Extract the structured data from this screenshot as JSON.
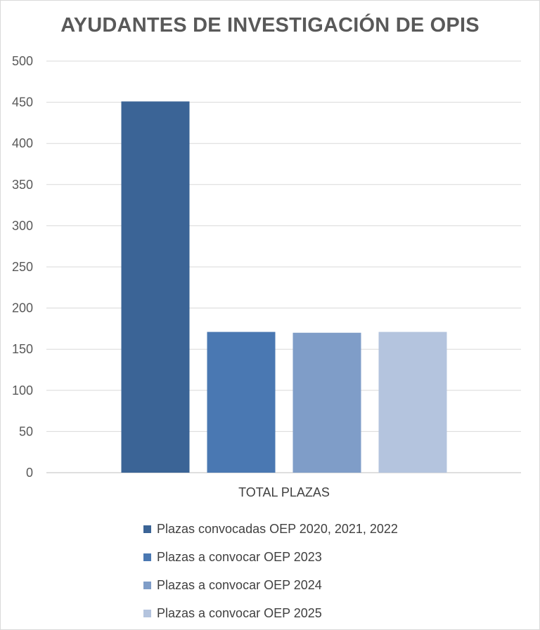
{
  "chart_data": {
    "type": "bar",
    "title": "AYUDANTES DE INVESTIGACIÓN DE OPIS",
    "categories": [
      "TOTAL PLAZAS"
    ],
    "series": [
      {
        "name": "Plazas convocadas OEP 2020, 2021, 2022",
        "values": [
          451
        ],
        "color": "#3b6496"
      },
      {
        "name": "Plazas a convocar OEP 2023",
        "values": [
          171
        ],
        "color": "#4a78b2"
      },
      {
        "name": "Plazas a convocar OEP 2024",
        "values": [
          170
        ],
        "color": "#7f9dc8"
      },
      {
        "name": "Plazas a convocar OEP 2025",
        "values": [
          171
        ],
        "color": "#b4c4de"
      }
    ],
    "ylim": [
      0,
      500
    ],
    "yticks": [
      "0",
      "50",
      "100",
      "150",
      "200",
      "250",
      "300",
      "350",
      "400",
      "450",
      "500"
    ],
    "grid": true,
    "legend": "bottom"
  }
}
